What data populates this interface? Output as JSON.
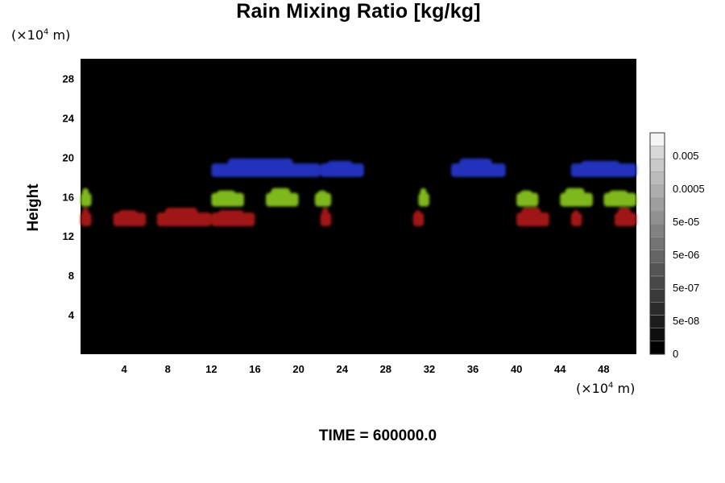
{
  "header": {
    "title": "Rain Mixing Ratio [kg/kg]",
    "y_unit_prefix": "(×10",
    "y_unit_exp": "4",
    "y_unit_suffix": " m)",
    "x_unit_prefix": "(×10",
    "x_unit_exp": "4",
    "x_unit_suffix": " m)"
  },
  "footer": {
    "time_label": "TIME = 600000.0"
  },
  "chart_data": {
    "type": "heatmap",
    "title": "Rain Mixing Ratio [kg/kg]",
    "ylabel": "Height",
    "xlabel": "",
    "x_ticks": [
      "4",
      "8",
      "12",
      "16",
      "20",
      "24",
      "28",
      "32",
      "36",
      "40",
      "44",
      "48"
    ],
    "y_ticks": [
      "4",
      "8",
      "12",
      "16",
      "20",
      "24",
      "28"
    ],
    "xlim": [
      0,
      51
    ],
    "ylim": [
      0,
      30
    ],
    "background_color": "#000000",
    "colorbar": {
      "labels": [
        "0",
        "5e-08",
        "5e-07",
        "5e-06",
        "5e-05",
        "0.0005",
        "0.005"
      ],
      "levels": 17,
      "colors": [
        "#000000",
        "#ffffff"
      ]
    },
    "regions": [
      {
        "color": "#2233bb",
        "height_range": [
          17.5,
          20
        ],
        "x_ranges": [
          [
            12,
            22
          ],
          [
            22,
            26
          ],
          [
            34,
            39
          ],
          [
            45,
            51
          ]
        ]
      },
      {
        "color": "#7fb81e",
        "height_range": [
          14.5,
          17
        ],
        "x_ranges": [
          [
            0,
            1
          ],
          [
            12,
            15
          ],
          [
            17,
            20
          ],
          [
            21.5,
            23
          ],
          [
            31,
            32
          ],
          [
            40,
            42
          ],
          [
            44,
            47
          ],
          [
            48,
            51
          ]
        ]
      },
      {
        "color": "#a01818",
        "height_range": [
          12.5,
          15
        ],
        "x_ranges": [
          [
            0,
            1
          ],
          [
            3,
            6
          ],
          [
            7,
            12
          ],
          [
            12,
            16
          ],
          [
            22,
            23
          ],
          [
            30.5,
            31.5
          ],
          [
            40,
            43
          ],
          [
            45,
            46
          ],
          [
            49,
            51
          ]
        ]
      }
    ]
  }
}
